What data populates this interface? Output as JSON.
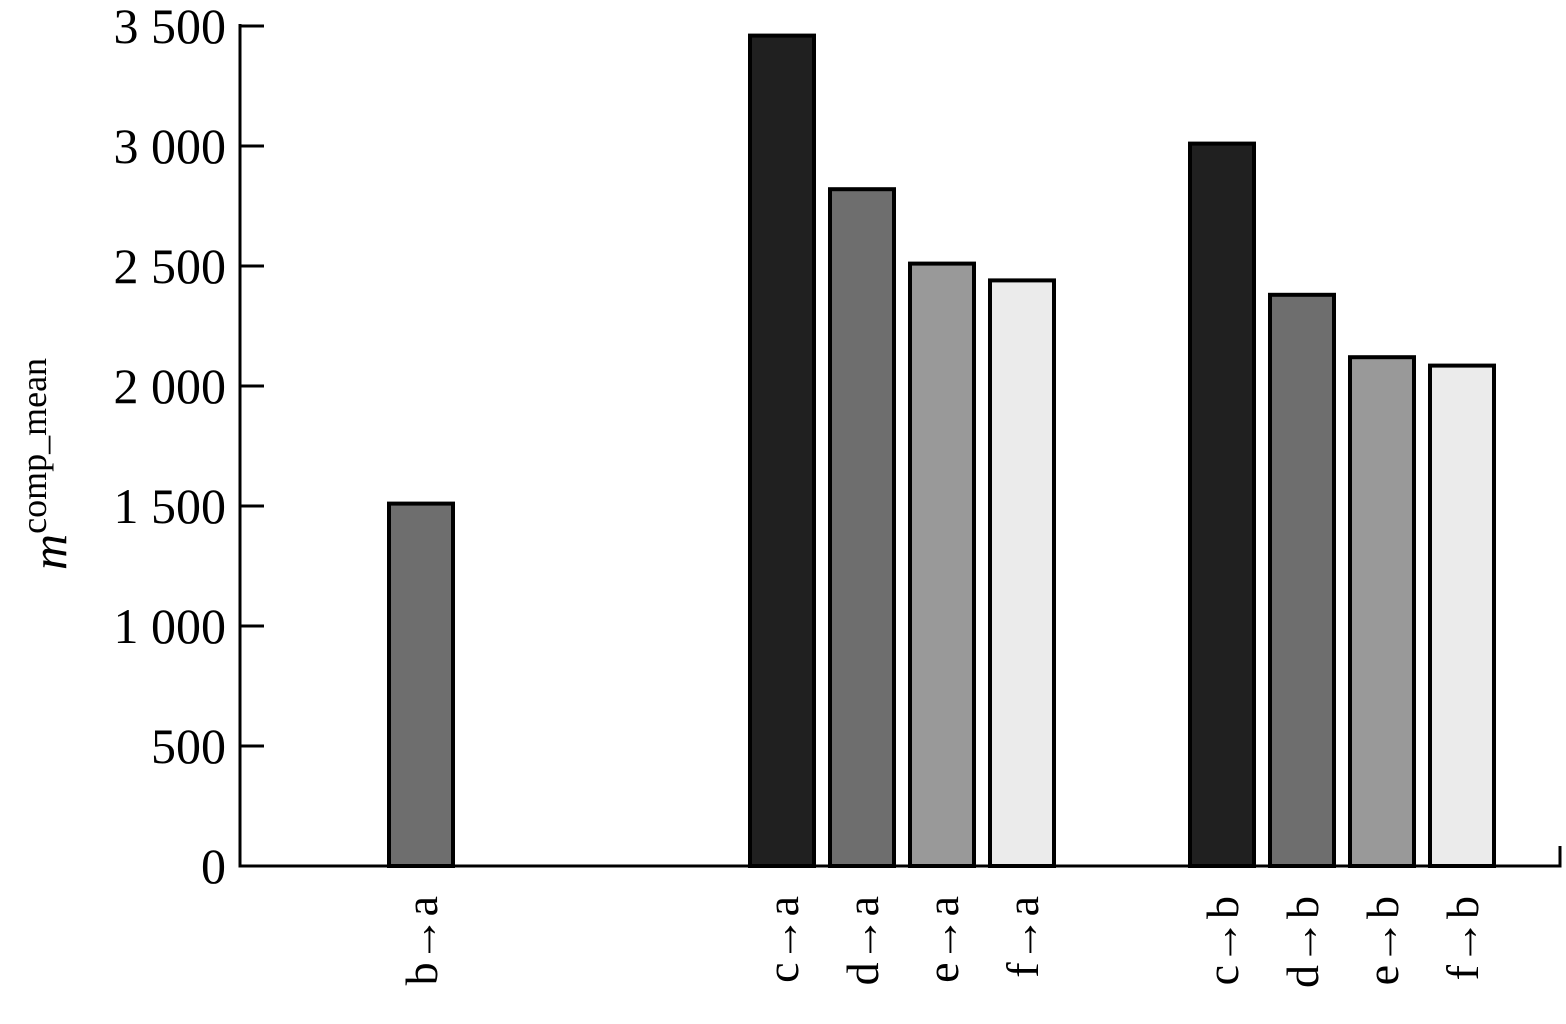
{
  "chart_data": {
    "type": "bar",
    "ylabel": {
      "main": "m",
      "sup": "comp_mean"
    },
    "ylim": [
      0,
      3500
    ],
    "yticks": [
      0,
      500,
      1000,
      1500,
      2000,
      2500,
      3000,
      3500
    ],
    "ytick_labels": [
      "0",
      "500",
      "1 000",
      "1 500",
      "2 000",
      "2 500",
      "3 000",
      "3 500"
    ],
    "grid": false,
    "legend": "none",
    "groups": [
      {
        "bars": [
          {
            "label": "b→a",
            "value": 1510,
            "color": "#6e6e6e"
          }
        ]
      },
      {
        "bars": [
          {
            "label": "c→a",
            "value": 3460,
            "color": "#202020"
          },
          {
            "label": "d→a",
            "value": 2820,
            "color": "#6e6e6e"
          },
          {
            "label": "e→a",
            "value": 2510,
            "color": "#999999"
          },
          {
            "label": "f→a",
            "value": 2440,
            "color": "#ebebeb"
          }
        ]
      },
      {
        "bars": [
          {
            "label": "c→b",
            "value": 3010,
            "color": "#202020"
          },
          {
            "label": "d→b",
            "value": 2380,
            "color": "#6e6e6e"
          },
          {
            "label": "e→b",
            "value": 2120,
            "color": "#999999"
          },
          {
            "label": "f→b",
            "value": 2085,
            "color": "#ebebeb"
          }
        ]
      }
    ]
  }
}
